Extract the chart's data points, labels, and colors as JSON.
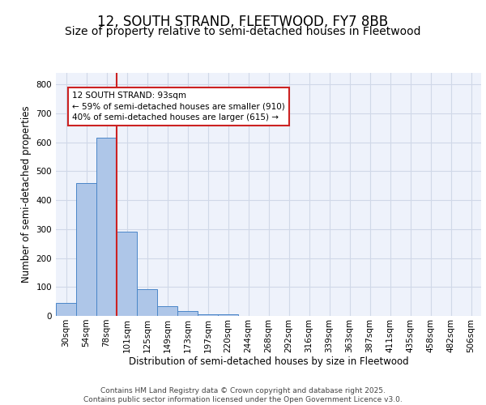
{
  "title": "12, SOUTH STRAND, FLEETWOOD, FY7 8BB",
  "subtitle": "Size of property relative to semi-detached houses in Fleetwood",
  "xlabel": "Distribution of semi-detached houses by size in Fleetwood",
  "ylabel": "Number of semi-detached properties",
  "bar_values": [
    46,
    460,
    615,
    290,
    93,
    35,
    16,
    7,
    5,
    0,
    0,
    0,
    0,
    0,
    0,
    0,
    0,
    0,
    0,
    0,
    0
  ],
  "categories": [
    "30sqm",
    "54sqm",
    "78sqm",
    "101sqm",
    "125sqm",
    "149sqm",
    "173sqm",
    "197sqm",
    "220sqm",
    "244sqm",
    "268sqm",
    "292sqm",
    "316sqm",
    "339sqm",
    "363sqm",
    "387sqm",
    "411sqm",
    "435sqm",
    "458sqm",
    "482sqm",
    "506sqm"
  ],
  "bar_color": "#aec6e8",
  "bar_edge_color": "#4a86c8",
  "grid_color": "#d0d8e8",
  "background_color": "#eef2fb",
  "vline_x": 2.5,
  "vline_color": "#cc2222",
  "annotation_text": "12 SOUTH STRAND: 93sqm\n← 59% of semi-detached houses are smaller (910)\n40% of semi-detached houses are larger (615) →",
  "annotation_box_color": "#ffffff",
  "annotation_box_edge": "#cc2222",
  "ylim": [
    0,
    840
  ],
  "yticks": [
    0,
    100,
    200,
    300,
    400,
    500,
    600,
    700,
    800
  ],
  "footer_line1": "Contains HM Land Registry data © Crown copyright and database right 2025.",
  "footer_line2": "Contains public sector information licensed under the Open Government Licence v3.0.",
  "title_fontsize": 12,
  "subtitle_fontsize": 10,
  "axis_label_fontsize": 8.5,
  "tick_fontsize": 7.5,
  "annotation_fontsize": 7.5,
  "footer_fontsize": 6.5
}
